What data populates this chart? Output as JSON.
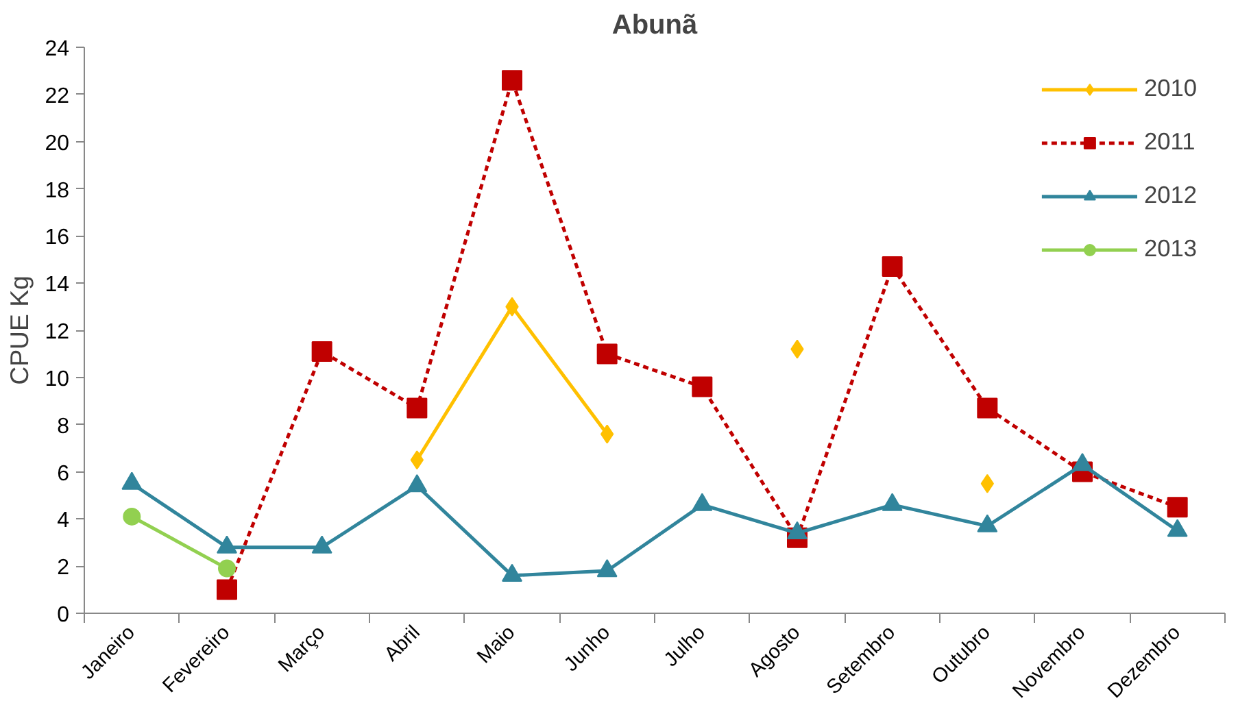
{
  "chart_data": {
    "type": "line",
    "title": "Abunã",
    "ylabel": "CPUE Kg",
    "categories": [
      "Janeiro",
      "Fevereiro",
      "Março",
      "Abril",
      "Maio",
      "Junho",
      "Julho",
      "Agosto",
      "Setembro",
      "Outubro",
      "Novembro",
      "Dezembro"
    ],
    "series": [
      {
        "name": "2010",
        "color": "#ffc000",
        "marker": "diamond",
        "line_style": "solid",
        "values": [
          null,
          null,
          null,
          6.5,
          13.0,
          7.6,
          null,
          11.2,
          null,
          5.5,
          null,
          null
        ]
      },
      {
        "name": "2011",
        "color": "#c00000",
        "marker": "square",
        "line_style": "dashed",
        "values": [
          null,
          1.0,
          11.1,
          8.7,
          22.6,
          11.0,
          9.6,
          3.2,
          14.7,
          8.7,
          6.0,
          4.5
        ]
      },
      {
        "name": "2012",
        "color": "#31859c",
        "marker": "triangle",
        "line_style": "solid",
        "values": [
          5.5,
          2.8,
          2.8,
          5.4,
          1.6,
          1.8,
          4.6,
          3.4,
          4.6,
          3.7,
          6.3,
          3.5
        ]
      },
      {
        "name": "2013",
        "color": "#92d050",
        "marker": "circle",
        "line_style": "solid",
        "values": [
          4.1,
          1.9,
          null,
          null,
          null,
          null,
          null,
          null,
          null,
          null,
          null,
          null
        ]
      }
    ],
    "ylim": [
      0,
      24
    ],
    "yticks": [
      0,
      2,
      4,
      6,
      8,
      10,
      12,
      14,
      16,
      18,
      20,
      22,
      24
    ],
    "grid": false,
    "legend": "top right"
  }
}
